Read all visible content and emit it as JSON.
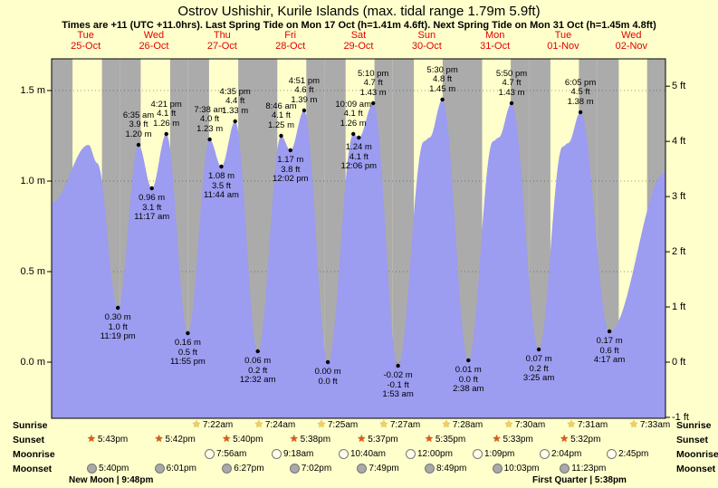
{
  "header": {
    "title": "Ostrov Ushishir, Kurile Islands (max. tidal range 1.79m 5.9ft)",
    "subtitle": "Times are +11 (UTC +11.0hrs). Last Spring Tide on Mon 17 Oct (h=1.41m 4.6ft). Next Spring Tide on Mon 31 Oct (h=1.45m 4.8ft)"
  },
  "days": [
    {
      "name": "Tue",
      "date": "25-Oct"
    },
    {
      "name": "Wed",
      "date": "26-Oct"
    },
    {
      "name": "Thu",
      "date": "27-Oct"
    },
    {
      "name": "Fri",
      "date": "28-Oct"
    },
    {
      "name": "Sat",
      "date": "29-Oct"
    },
    {
      "name": "Sun",
      "date": "30-Oct"
    },
    {
      "name": "Mon",
      "date": "31-Oct"
    },
    {
      "name": "Tue",
      "date": "01-Nov"
    },
    {
      "name": "Wed",
      "date": "02-Nov"
    }
  ],
  "colors": {
    "page_bg": "#ffffcc",
    "night_band": "#ababab",
    "tide_fill": "#9c9cf0",
    "day_label_red": "#e30000",
    "sunrise_star": "#ffd24d",
    "sunset_star": "#e2571b",
    "moonrise_fill": "#fffde8",
    "moonset_fill": "#a9a9a9"
  },
  "chart_data": {
    "type": "area",
    "x_unit": "hours from Tue 25-Oct 00:00",
    "xlim": [
      0,
      216
    ],
    "y_unit": "m",
    "ylim_m": [
      -0.31,
      1.675
    ],
    "gridlines_m": [
      0.0,
      0.5,
      1.0,
      1.5
    ],
    "y_axis_m": {
      "labels": [
        "1.5 m",
        "1.0 m",
        "0.5 m",
        "0.0 m"
      ],
      "values": [
        1.5,
        1.0,
        0.5,
        0.0
      ]
    },
    "y_axis_ft": {
      "labels": [
        "5 ft",
        "4 ft",
        "3 ft",
        "2 ft",
        "1 ft",
        "0 ft",
        "-1 ft"
      ],
      "values": [
        5,
        4,
        3,
        2,
        1,
        0,
        -1
      ]
    },
    "extremes": [
      {
        "t": 0.0,
        "h": 0.88,
        "anchor": true
      },
      {
        "t": 13.0,
        "h": 1.2,
        "anchor": true
      },
      {
        "t": 16.0,
        "h": 1.1,
        "anchor": true
      },
      {
        "t": 23.32,
        "h": 0.3
      },
      {
        "t": 30.58,
        "h": 1.2
      },
      {
        "t": 35.28,
        "h": 0.96
      },
      {
        "t": 40.35,
        "h": 1.26
      },
      {
        "t": 47.92,
        "h": 0.16
      },
      {
        "t": 55.63,
        "h": 1.23
      },
      {
        "t": 59.73,
        "h": 1.08
      },
      {
        "t": 64.58,
        "h": 1.33
      },
      {
        "t": 72.53,
        "h": 0.06
      },
      {
        "t": 80.77,
        "h": 1.25
      },
      {
        "t": 84.03,
        "h": 1.17
      },
      {
        "t": 88.85,
        "h": 1.39
      },
      {
        "t": 97.2,
        "h": 0.0
      },
      {
        "t": 106.15,
        "h": 1.26
      },
      {
        "t": 108.1,
        "h": 1.24
      },
      {
        "t": 113.17,
        "h": 1.43
      },
      {
        "t": 121.88,
        "h": -0.02
      },
      {
        "t": 131.0,
        "h": 1.22,
        "anchor": true
      },
      {
        "t": 133.0,
        "h": 1.24,
        "anchor": true
      },
      {
        "t": 137.5,
        "h": 1.45
      },
      {
        "t": 146.63,
        "h": 0.01
      },
      {
        "t": 155.3,
        "h": 1.22,
        "anchor": true
      },
      {
        "t": 157.3,
        "h": 1.24,
        "anchor": true
      },
      {
        "t": 161.83,
        "h": 1.43
      },
      {
        "t": 171.42,
        "h": 0.07
      },
      {
        "t": 179.8,
        "h": 1.19,
        "anchor": true
      },
      {
        "t": 181.8,
        "h": 1.21,
        "anchor": true
      },
      {
        "t": 186.08,
        "h": 1.38
      },
      {
        "t": 196.28,
        "h": 0.17
      },
      {
        "t": 216.0,
        "h": 1.05,
        "anchor": true
      }
    ],
    "labels": [
      {
        "t": 23.32,
        "h": 0.3,
        "kind": "low",
        "lines": [
          "0.30 m",
          "1.0 ft",
          "11:19 pm"
        ]
      },
      {
        "t": 30.58,
        "h": 1.2,
        "kind": "high",
        "lines": [
          "6:35 am",
          "3.9 ft",
          "1.20 m"
        ]
      },
      {
        "t": 35.28,
        "h": 0.96,
        "kind": "low",
        "lines": [
          "0.96 m",
          "3.1 ft",
          "11:17 am"
        ]
      },
      {
        "t": 40.35,
        "h": 1.26,
        "kind": "high",
        "lines": [
          "4:21 pm",
          "4.1 ft",
          "1.26 m"
        ]
      },
      {
        "t": 47.92,
        "h": 0.16,
        "kind": "low",
        "lines": [
          "0.16 m",
          "0.5 ft",
          "11:55 pm"
        ]
      },
      {
        "t": 55.63,
        "h": 1.23,
        "kind": "high",
        "lines": [
          "7:38 am",
          "4.0 ft",
          "1.23 m"
        ]
      },
      {
        "t": 59.73,
        "h": 1.08,
        "kind": "low",
        "lines": [
          "1.08 m",
          "3.5 ft",
          "11:44 am"
        ]
      },
      {
        "t": 64.58,
        "h": 1.33,
        "kind": "high",
        "lines": [
          "4:35 pm",
          "4.4 ft",
          "1.33 m"
        ]
      },
      {
        "t": 72.53,
        "h": 0.06,
        "kind": "low",
        "lines": [
          "0.06 m",
          "0.2 ft",
          "12:32 am"
        ]
      },
      {
        "t": 80.77,
        "h": 1.25,
        "kind": "high",
        "lines": [
          "8:46 am",
          "4.1 ft",
          "1.25 m"
        ]
      },
      {
        "t": 84.03,
        "h": 1.17,
        "kind": "low",
        "lines": [
          "1.17 m",
          "3.8 ft",
          "12:02 pm"
        ]
      },
      {
        "t": 88.85,
        "h": 1.39,
        "kind": "high",
        "lines": [
          "4:51 pm",
          "4.6 ft",
          "1.39 m"
        ]
      },
      {
        "t": 97.2,
        "h": 0.0,
        "kind": "low",
        "lines": [
          "0.00 m",
          "0.0 ft"
        ]
      },
      {
        "t": 106.15,
        "h": 1.26,
        "kind": "high",
        "lines": [
          "10:09 am",
          "4.1 ft",
          "1.26 m"
        ]
      },
      {
        "t": 108.1,
        "h": 1.24,
        "kind": "low",
        "lines": [
          "1.24 m",
          "4.1 ft",
          "12:06 pm"
        ]
      },
      {
        "t": 113.17,
        "h": 1.43,
        "kind": "high",
        "lines": [
          "5:10 pm",
          "4.7 ft",
          "1.43 m"
        ]
      },
      {
        "t": 121.88,
        "h": -0.02,
        "kind": "low",
        "lines": [
          "-0.02 m",
          "-0.1 ft",
          "1:53 am"
        ]
      },
      {
        "t": 137.5,
        "h": 1.45,
        "kind": "high",
        "lines": [
          "5:30 pm",
          "4.8 ft",
          "1.45 m"
        ]
      },
      {
        "t": 146.63,
        "h": 0.01,
        "kind": "low",
        "lines": [
          "0.01 m",
          "0.0 ft",
          "2:38 am"
        ]
      },
      {
        "t": 161.83,
        "h": 1.43,
        "kind": "high",
        "lines": [
          "5:50 pm",
          "4.7 ft",
          "1.43 m"
        ]
      },
      {
        "t": 171.42,
        "h": 0.07,
        "kind": "low",
        "lines": [
          "0.07 m",
          "0.2 ft",
          "3:25 am"
        ]
      },
      {
        "t": 186.08,
        "h": 1.38,
        "kind": "high",
        "lines": [
          "6:05 pm",
          "4.5 ft",
          "1.38 m"
        ]
      },
      {
        "t": 196.28,
        "h": 0.17,
        "kind": "low",
        "lines": [
          "0.17 m",
          "0.6 ft",
          "4:17 am"
        ]
      }
    ]
  },
  "sun_moon": {
    "row_labels_left": [
      "Sunrise",
      "Sunset",
      "Moonrise",
      "Moonset"
    ],
    "row_labels_right": [
      "Sunrise",
      "Sunset",
      "Moonrise",
      "Moonset"
    ],
    "sunrise": [
      "7:22am",
      "7:24am",
      "7:25am",
      "7:27am",
      "7:28am",
      "7:30am",
      "7:31am",
      "7:33am"
    ],
    "sunset": [
      "5:43pm",
      "5:42pm",
      "5:40pm",
      "5:38pm",
      "5:37pm",
      "5:35pm",
      "5:33pm",
      "5:32pm"
    ],
    "moonrise": [
      "7:56am",
      "9:18am",
      "10:40am",
      "12:00pm",
      "1:09pm",
      "2:04pm",
      "2:45pm"
    ],
    "moonset": [
      "5:40pm",
      "6:01pm",
      "6:27pm",
      "7:02pm",
      "7:49pm",
      "8:49pm",
      "10:03pm",
      "11:23pm"
    ],
    "notes": {
      "new_moon": "New Moon | 9:48pm",
      "first_quarter": "First Quarter | 5:38pm"
    }
  }
}
